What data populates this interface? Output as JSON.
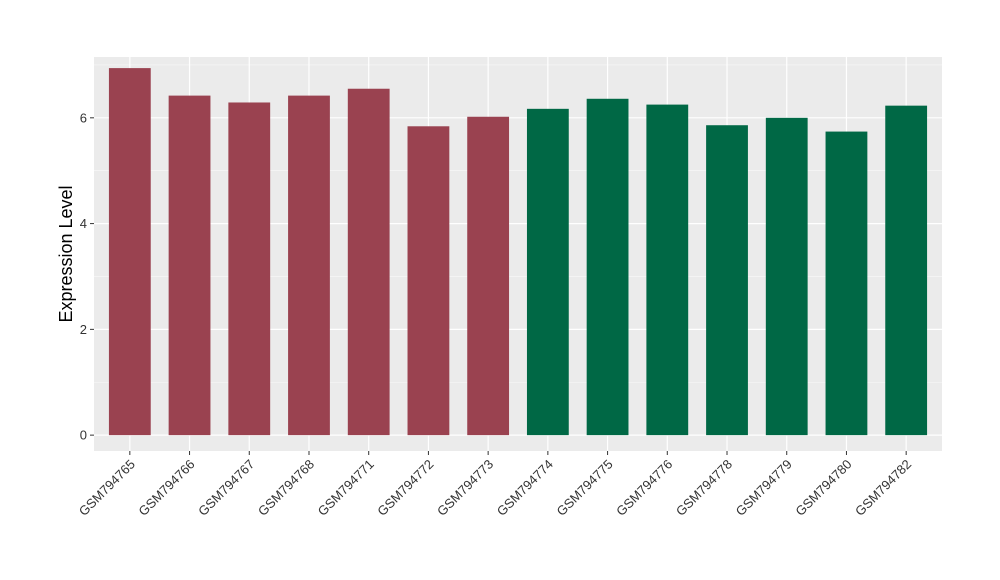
{
  "chart_data": {
    "type": "bar",
    "title": "",
    "xlabel": "",
    "ylabel": "Expression Level",
    "ylim": [
      -0.3,
      7.15
    ],
    "yticks": [
      0,
      2,
      4,
      6
    ],
    "grid": true,
    "legend": "none",
    "colors": {
      "panel": "#ebebeb",
      "grid_major": "#ffffff",
      "group_a": "#9a4250",
      "group_b": "#006845",
      "tick_text": "#333333",
      "tick_mark": "#333333"
    },
    "categories": [
      "GSM794765",
      "GSM794766",
      "GSM794767",
      "GSM794768",
      "GSM794771",
      "GSM794772",
      "GSM794773",
      "GSM794774",
      "GSM794775",
      "GSM794776",
      "GSM794778",
      "GSM794779",
      "GSM794780",
      "GSM794782"
    ],
    "values": [
      6.94,
      6.42,
      6.29,
      6.42,
      6.55,
      5.84,
      6.02,
      6.17,
      6.36,
      6.25,
      5.86,
      6.0,
      5.74,
      6.23
    ],
    "bar_groups": [
      "group_a",
      "group_a",
      "group_a",
      "group_a",
      "group_a",
      "group_a",
      "group_a",
      "group_b",
      "group_b",
      "group_b",
      "group_b",
      "group_b",
      "group_b",
      "group_b"
    ]
  }
}
